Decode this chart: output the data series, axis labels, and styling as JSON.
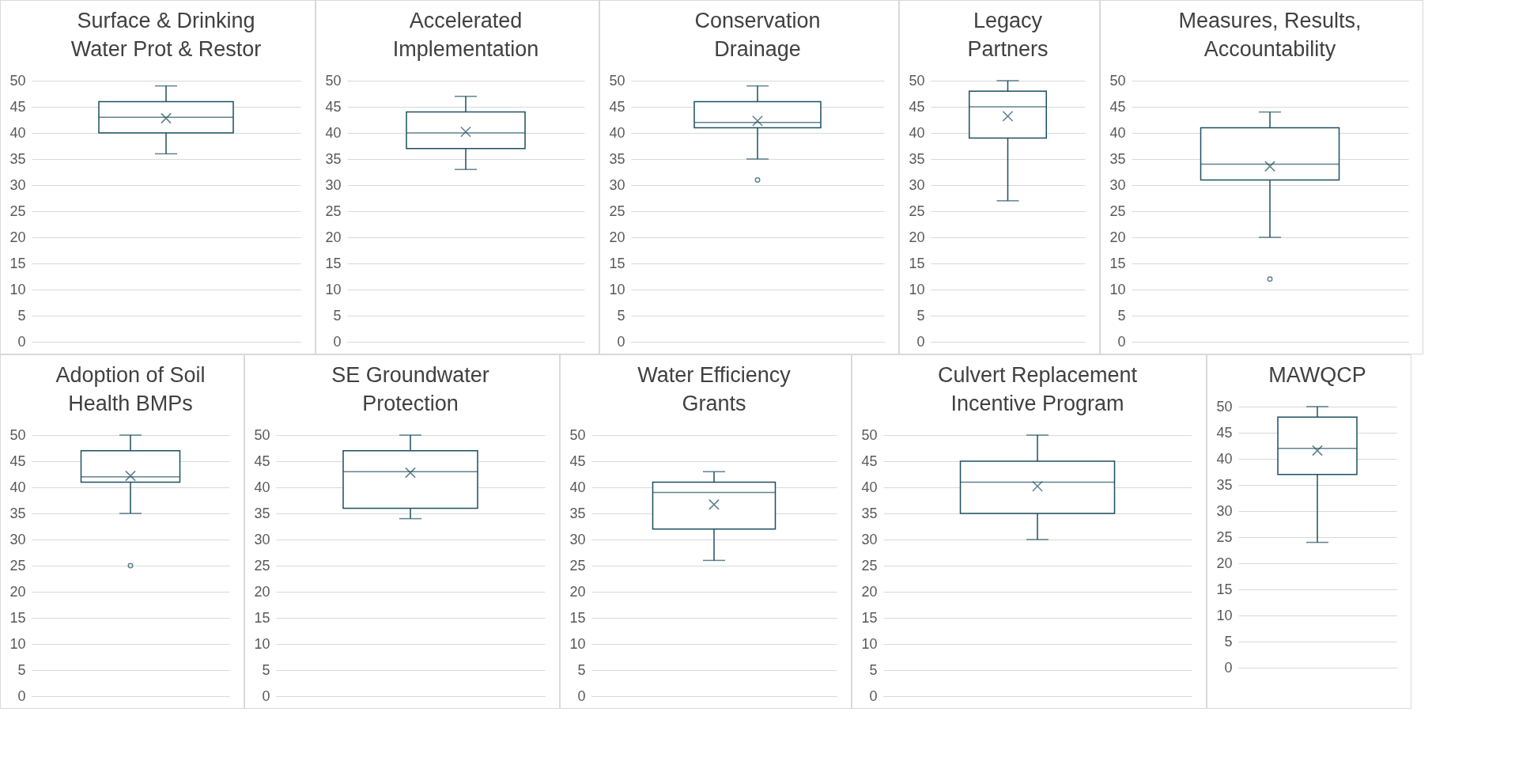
{
  "chart_data": [
    {
      "type": "box",
      "title": "Surface & Drinking Water Prot & Restor",
      "categories": [
        null
      ],
      "color": "#1d4f60",
      "boxes": [
        {
          "low": 36,
          "q1": 40,
          "median": 43,
          "q3": 46,
          "high": 49,
          "mean": 42.8
        }
      ],
      "ylim": [
        0,
        50
      ],
      "yticks": [
        0,
        5,
        10,
        15,
        20,
        25,
        30,
        35,
        40,
        45,
        50
      ],
      "grid": "y",
      "tick_labels": "y"
    },
    {
      "type": "box",
      "title": "Accelerated Implementation",
      "categories": [
        null
      ],
      "color": "#1d4f60",
      "boxes": [
        {
          "low": 33,
          "q1": 37,
          "median": 40,
          "q3": 44,
          "high": 47,
          "mean": 40.2
        }
      ],
      "ylim": [
        0,
        50
      ],
      "yticks": [
        0,
        5,
        10,
        15,
        20,
        25,
        30,
        35,
        40,
        45,
        50
      ],
      "grid": "y",
      "tick_labels": "y"
    },
    {
      "type": "box",
      "title": "Conservation Drainage",
      "categories": [
        null
      ],
      "color": "#1d4f60",
      "boxes": [
        {
          "low": 35,
          "q1": 41,
          "median": 42,
          "q3": 46,
          "high": 49,
          "mean": 42.3,
          "outliers": [
            31
          ]
        }
      ],
      "ylim": [
        0,
        50
      ],
      "yticks": [
        0,
        5,
        10,
        15,
        20,
        25,
        30,
        35,
        40,
        45,
        50
      ],
      "grid": "y",
      "tick_labels": "y"
    },
    {
      "type": "box",
      "title": "Legacy Partners",
      "categories": [
        null
      ],
      "color": "#1d4f60",
      "boxes": [
        {
          "low": 27,
          "q1": 39,
          "median": 45,
          "q3": 48,
          "high": 50,
          "mean": 43.2
        }
      ],
      "ylim": [
        0,
        50
      ],
      "yticks": [
        0,
        5,
        10,
        15,
        20,
        25,
        30,
        35,
        40,
        45,
        50
      ],
      "grid": "y",
      "tick_labels": "y"
    },
    {
      "type": "box",
      "title": "Measures, Results, Accountability",
      "categories": [
        null
      ],
      "color": "#1d4f60",
      "boxes": [
        {
          "low": 20,
          "q1": 31,
          "median": 34,
          "q3": 41,
          "high": 44,
          "mean": 33.6,
          "outliers": [
            12
          ]
        }
      ],
      "ylim": [
        0,
        50
      ],
      "yticks": [
        0,
        5,
        10,
        15,
        20,
        25,
        30,
        35,
        40,
        45,
        50
      ],
      "grid": "y",
      "tick_labels": "y"
    },
    {
      "type": "box",
      "title": "Adoption of Soil Health BMPs",
      "categories": [
        null
      ],
      "color": "#1d4f60",
      "boxes": [
        {
          "low": 35,
          "q1": 41,
          "median": 42,
          "q3": 47,
          "high": 50,
          "mean": 42.2,
          "outliers": [
            25
          ]
        }
      ],
      "ylim": [
        0,
        50
      ],
      "yticks": [
        0,
        5,
        10,
        15,
        20,
        25,
        30,
        35,
        40,
        45,
        50
      ],
      "grid": "y",
      "tick_labels": "y"
    },
    {
      "type": "box",
      "title": "SE Groundwater Protection",
      "categories": [
        null
      ],
      "color": "#1d4f60",
      "boxes": [
        {
          "low": 34,
          "q1": 36,
          "median": 43,
          "q3": 47,
          "high": 50,
          "mean": 42.8
        }
      ],
      "ylim": [
        0,
        50
      ],
      "yticks": [
        0,
        5,
        10,
        15,
        20,
        25,
        30,
        35,
        40,
        45,
        50
      ],
      "grid": "y",
      "tick_labels": "y"
    },
    {
      "type": "box",
      "title": "Water Efficiency Grants",
      "categories": [
        null
      ],
      "color": "#1d4f60",
      "boxes": [
        {
          "low": 26,
          "q1": 32,
          "median": 39,
          "q3": 41,
          "high": 43,
          "mean": 36.7
        }
      ],
      "ylim": [
        0,
        50
      ],
      "yticks": [
        0,
        5,
        10,
        15,
        20,
        25,
        30,
        35,
        40,
        45,
        50
      ],
      "grid": "y",
      "tick_labels": "y"
    },
    {
      "type": "box",
      "title": "Culvert Replacement Incentive Program",
      "categories": [
        null
      ],
      "color": "#1d4f60",
      "boxes": [
        {
          "low": 30,
          "q1": 35,
          "median": 41,
          "q3": 45,
          "high": 50,
          "mean": 40.2
        }
      ],
      "ylim": [
        0,
        50
      ],
      "yticks": [
        0,
        5,
        10,
        15,
        20,
        25,
        30,
        35,
        40,
        45,
        50
      ],
      "grid": "y",
      "tick_labels": "y"
    },
    {
      "type": "box",
      "title": "MAWQCP",
      "categories": [
        null
      ],
      "color": "#1d4f60",
      "boxes": [
        {
          "low": 24,
          "q1": 37,
          "median": 42,
          "q3": 48,
          "high": 50,
          "mean": 41.6
        }
      ],
      "ylim": [
        0,
        50
      ],
      "yticks": [
        0,
        5,
        10,
        15,
        20,
        25,
        30,
        35,
        40,
        45,
        50
      ],
      "grid": "y",
      "tick_labels": "y"
    }
  ]
}
